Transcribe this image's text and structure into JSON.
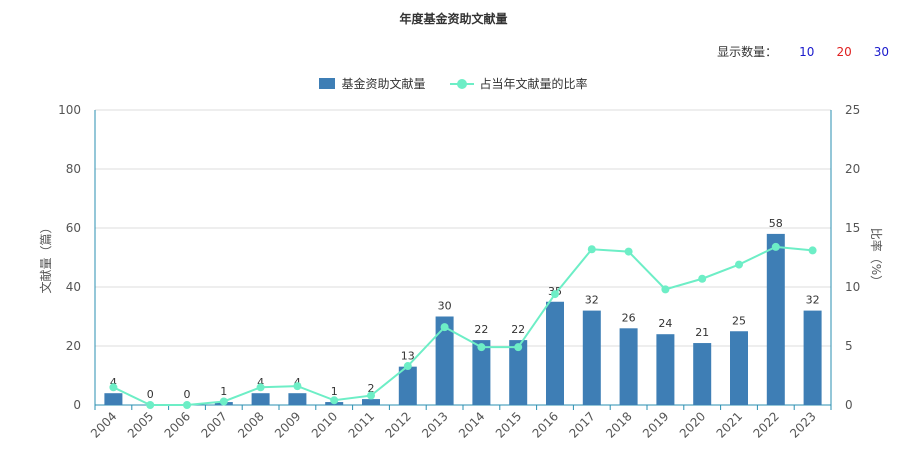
{
  "title": "年度基金资助文献量",
  "count_selector": {
    "label": "显示数量：",
    "options": [
      {
        "label": "10",
        "color": "#1a1acc"
      },
      {
        "label": "20",
        "color": "#e02020"
      },
      {
        "label": "30",
        "color": "#1a1acc"
      }
    ]
  },
  "legend": {
    "bar_label": "基金资助文献量",
    "line_label": "占当年文献量的比率"
  },
  "colors": {
    "bar": "#3e7eb5",
    "line": "#6deec6",
    "axis": "#2a8fb0",
    "grid": "#dddddd"
  },
  "chart_data": {
    "type": "bar",
    "categories": [
      "2004",
      "2005",
      "2006",
      "2007",
      "2008",
      "2009",
      "2010",
      "2011",
      "2012",
      "2013",
      "2014",
      "2015",
      "2016",
      "2017",
      "2018",
      "2019",
      "2020",
      "2021",
      "2022",
      "2023"
    ],
    "series": [
      {
        "name": "基金资助文献量",
        "type": "bar",
        "axis": "left",
        "values": [
          4,
          0,
          0,
          1,
          4,
          4,
          1,
          2,
          13,
          30,
          22,
          22,
          35,
          32,
          26,
          24,
          21,
          25,
          58,
          32
        ]
      },
      {
        "name": "占当年文献量的比率",
        "type": "line",
        "axis": "right",
        "values": [
          1.5,
          0,
          0,
          0.3,
          1.5,
          1.6,
          0.4,
          0.8,
          3.3,
          6.6,
          4.9,
          4.9,
          9.4,
          13.2,
          13.0,
          9.8,
          10.7,
          11.9,
          13.4,
          13.1
        ]
      }
    ],
    "ylabel_left": "文献量（篇）",
    "ylabel_right": "比率（%）",
    "ylim_left": [
      0,
      100
    ],
    "ylim_right": [
      0,
      25
    ],
    "yticks_left": [
      "0",
      "20",
      "40",
      "60",
      "80",
      "100"
    ],
    "yticks_right": [
      "0",
      "5",
      "10",
      "15",
      "20",
      "25"
    ],
    "grid": true,
    "legend_position": "top-center"
  }
}
